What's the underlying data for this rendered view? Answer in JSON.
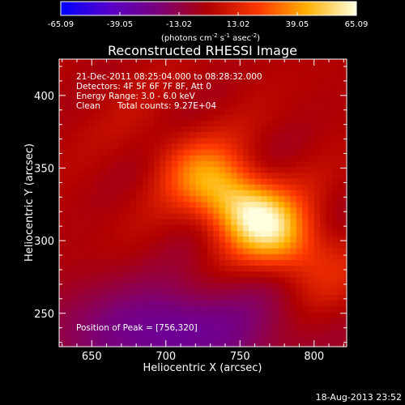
{
  "chart_data": {
    "type": "heatmap",
    "title": "Reconstructed RHESSI Image",
    "xlabel": "Heliocentric X (arcsec)",
    "ylabel": "Heliocentric Y (arcsec)",
    "xlim": [
      628,
      822
    ],
    "ylim": [
      227,
      425
    ],
    "x_ticks": [
      650,
      700,
      750,
      800
    ],
    "y_ticks": [
      250,
      300,
      350,
      400
    ],
    "colorbar": {
      "min": -65.09,
      "max": 65.09,
      "ticks": [
        "-65.09",
        "-39.05",
        "-13.02",
        "13.02",
        "39.05",
        "65.09"
      ],
      "tick_values": [
        -65.09,
        -39.05,
        -13.02,
        13.02,
        39.05,
        65.09
      ],
      "unit_prefix": "(photons cm",
      "unit_exp1": "-2",
      "unit_mid": " s",
      "unit_exp2": "-1",
      "unit_mid2": " asec",
      "unit_exp3": "-2",
      "unit_suffix": ")",
      "colors": [
        "#0000ff",
        "#5a00c8",
        "#7a007a",
        "#b00000",
        "#ff3a00",
        "#ffb000",
        "#ffffe0"
      ]
    },
    "annotations": {
      "time_range": "21-Dec-2011 08:25:04.000 to 08:28:32.000",
      "detectors": "Detectors: 4F 5F 6F 7F 8F, Att 0",
      "energy_range": "Energy Range: 3.0 - 6.0 keV",
      "method": "Clean",
      "total_counts": "Total counts: 9.27E+04",
      "peak": "Position of Peak = [756,320]"
    },
    "peak": [
      756,
      320
    ],
    "source_sigma_major": 38,
    "source_sigma_minor": 17,
    "source_angle_deg": -38
  },
  "footer": {
    "timestamp": "18-Aug-2013 23:52"
  }
}
